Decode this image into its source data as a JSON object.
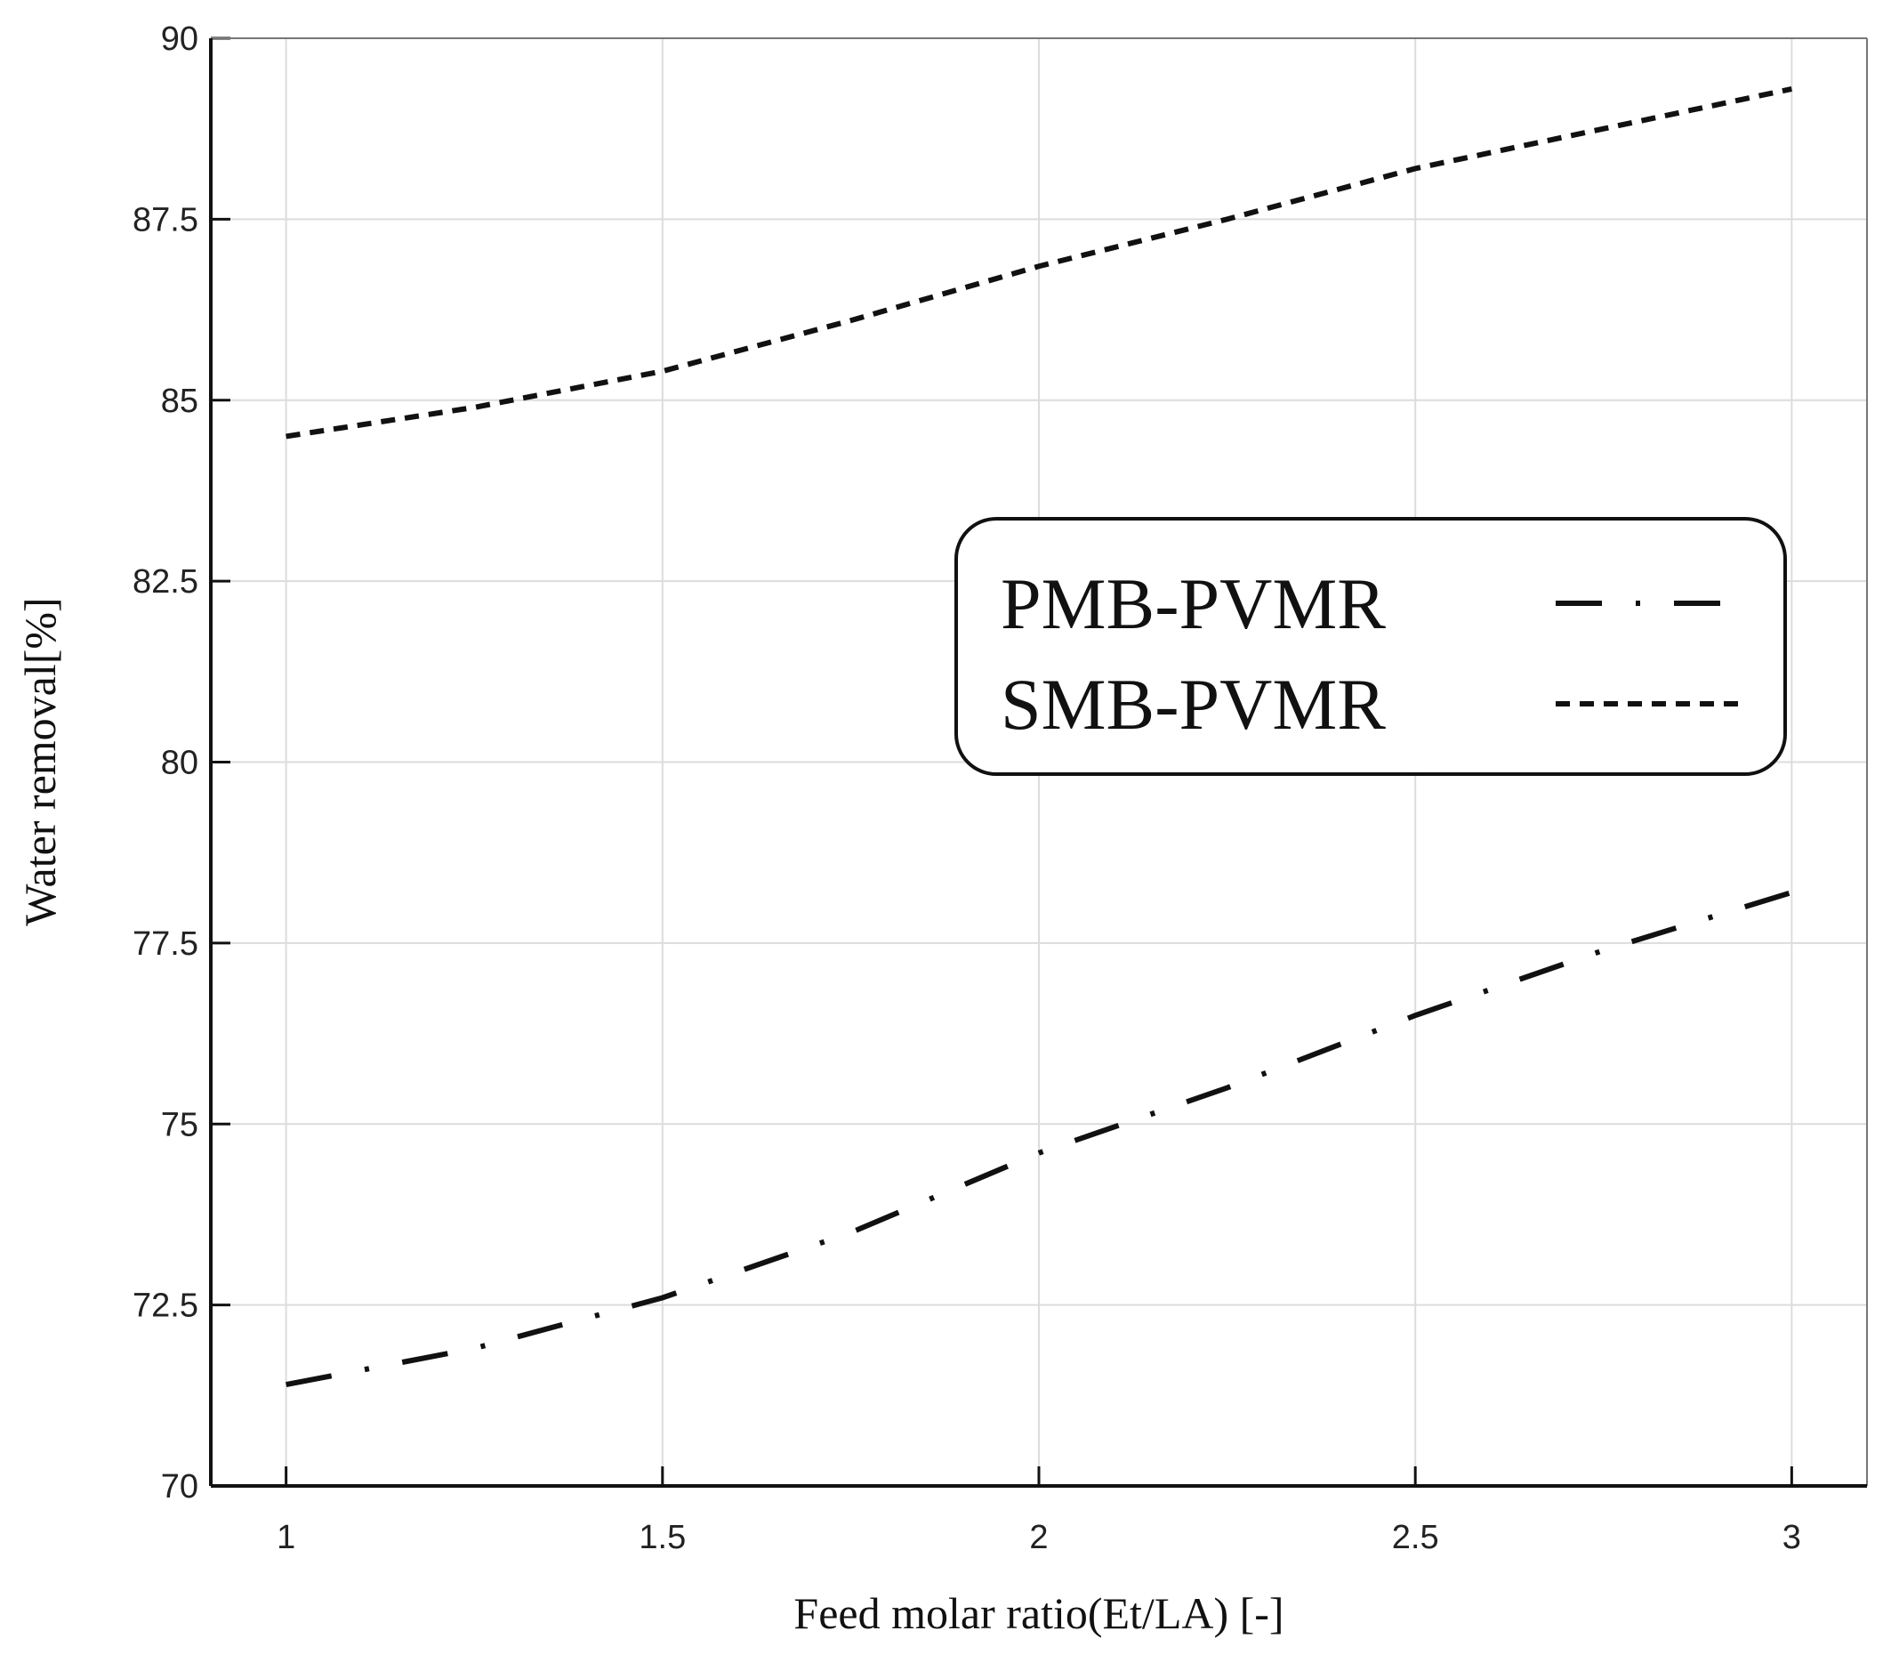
{
  "chart_data": {
    "type": "line",
    "x_label": "Feed molar ratio(Et/LA) [-]",
    "y_label": "Water removal[%]",
    "x": [
      1,
      1.25,
      1.5,
      1.75,
      2,
      2.25,
      2.5,
      2.75,
      3
    ],
    "series": [
      {
        "name": "PMB-PVMR",
        "color": "#111111",
        "dash": "dash-dot",
        "values": [
          71.4,
          71.9,
          72.6,
          73.5,
          74.6,
          75.5,
          76.5,
          77.4,
          78.2
        ]
      },
      {
        "name": "SMB-PVMR",
        "color": "#111111",
        "dash": "dashed",
        "values": [
          84.5,
          84.9,
          85.4,
          86.1,
          86.85,
          87.5,
          88.2,
          88.75,
          89.3
        ]
      }
    ],
    "xlim": [
      0.9,
      3.1
    ],
    "xticks": [
      1,
      1.5,
      2,
      2.5,
      3
    ],
    "ylim": [
      70,
      90
    ],
    "yticks": [
      70,
      72.5,
      75,
      77.5,
      80,
      82.5,
      85,
      87.5,
      90
    ],
    "grid": true,
    "legend": "center right"
  }
}
